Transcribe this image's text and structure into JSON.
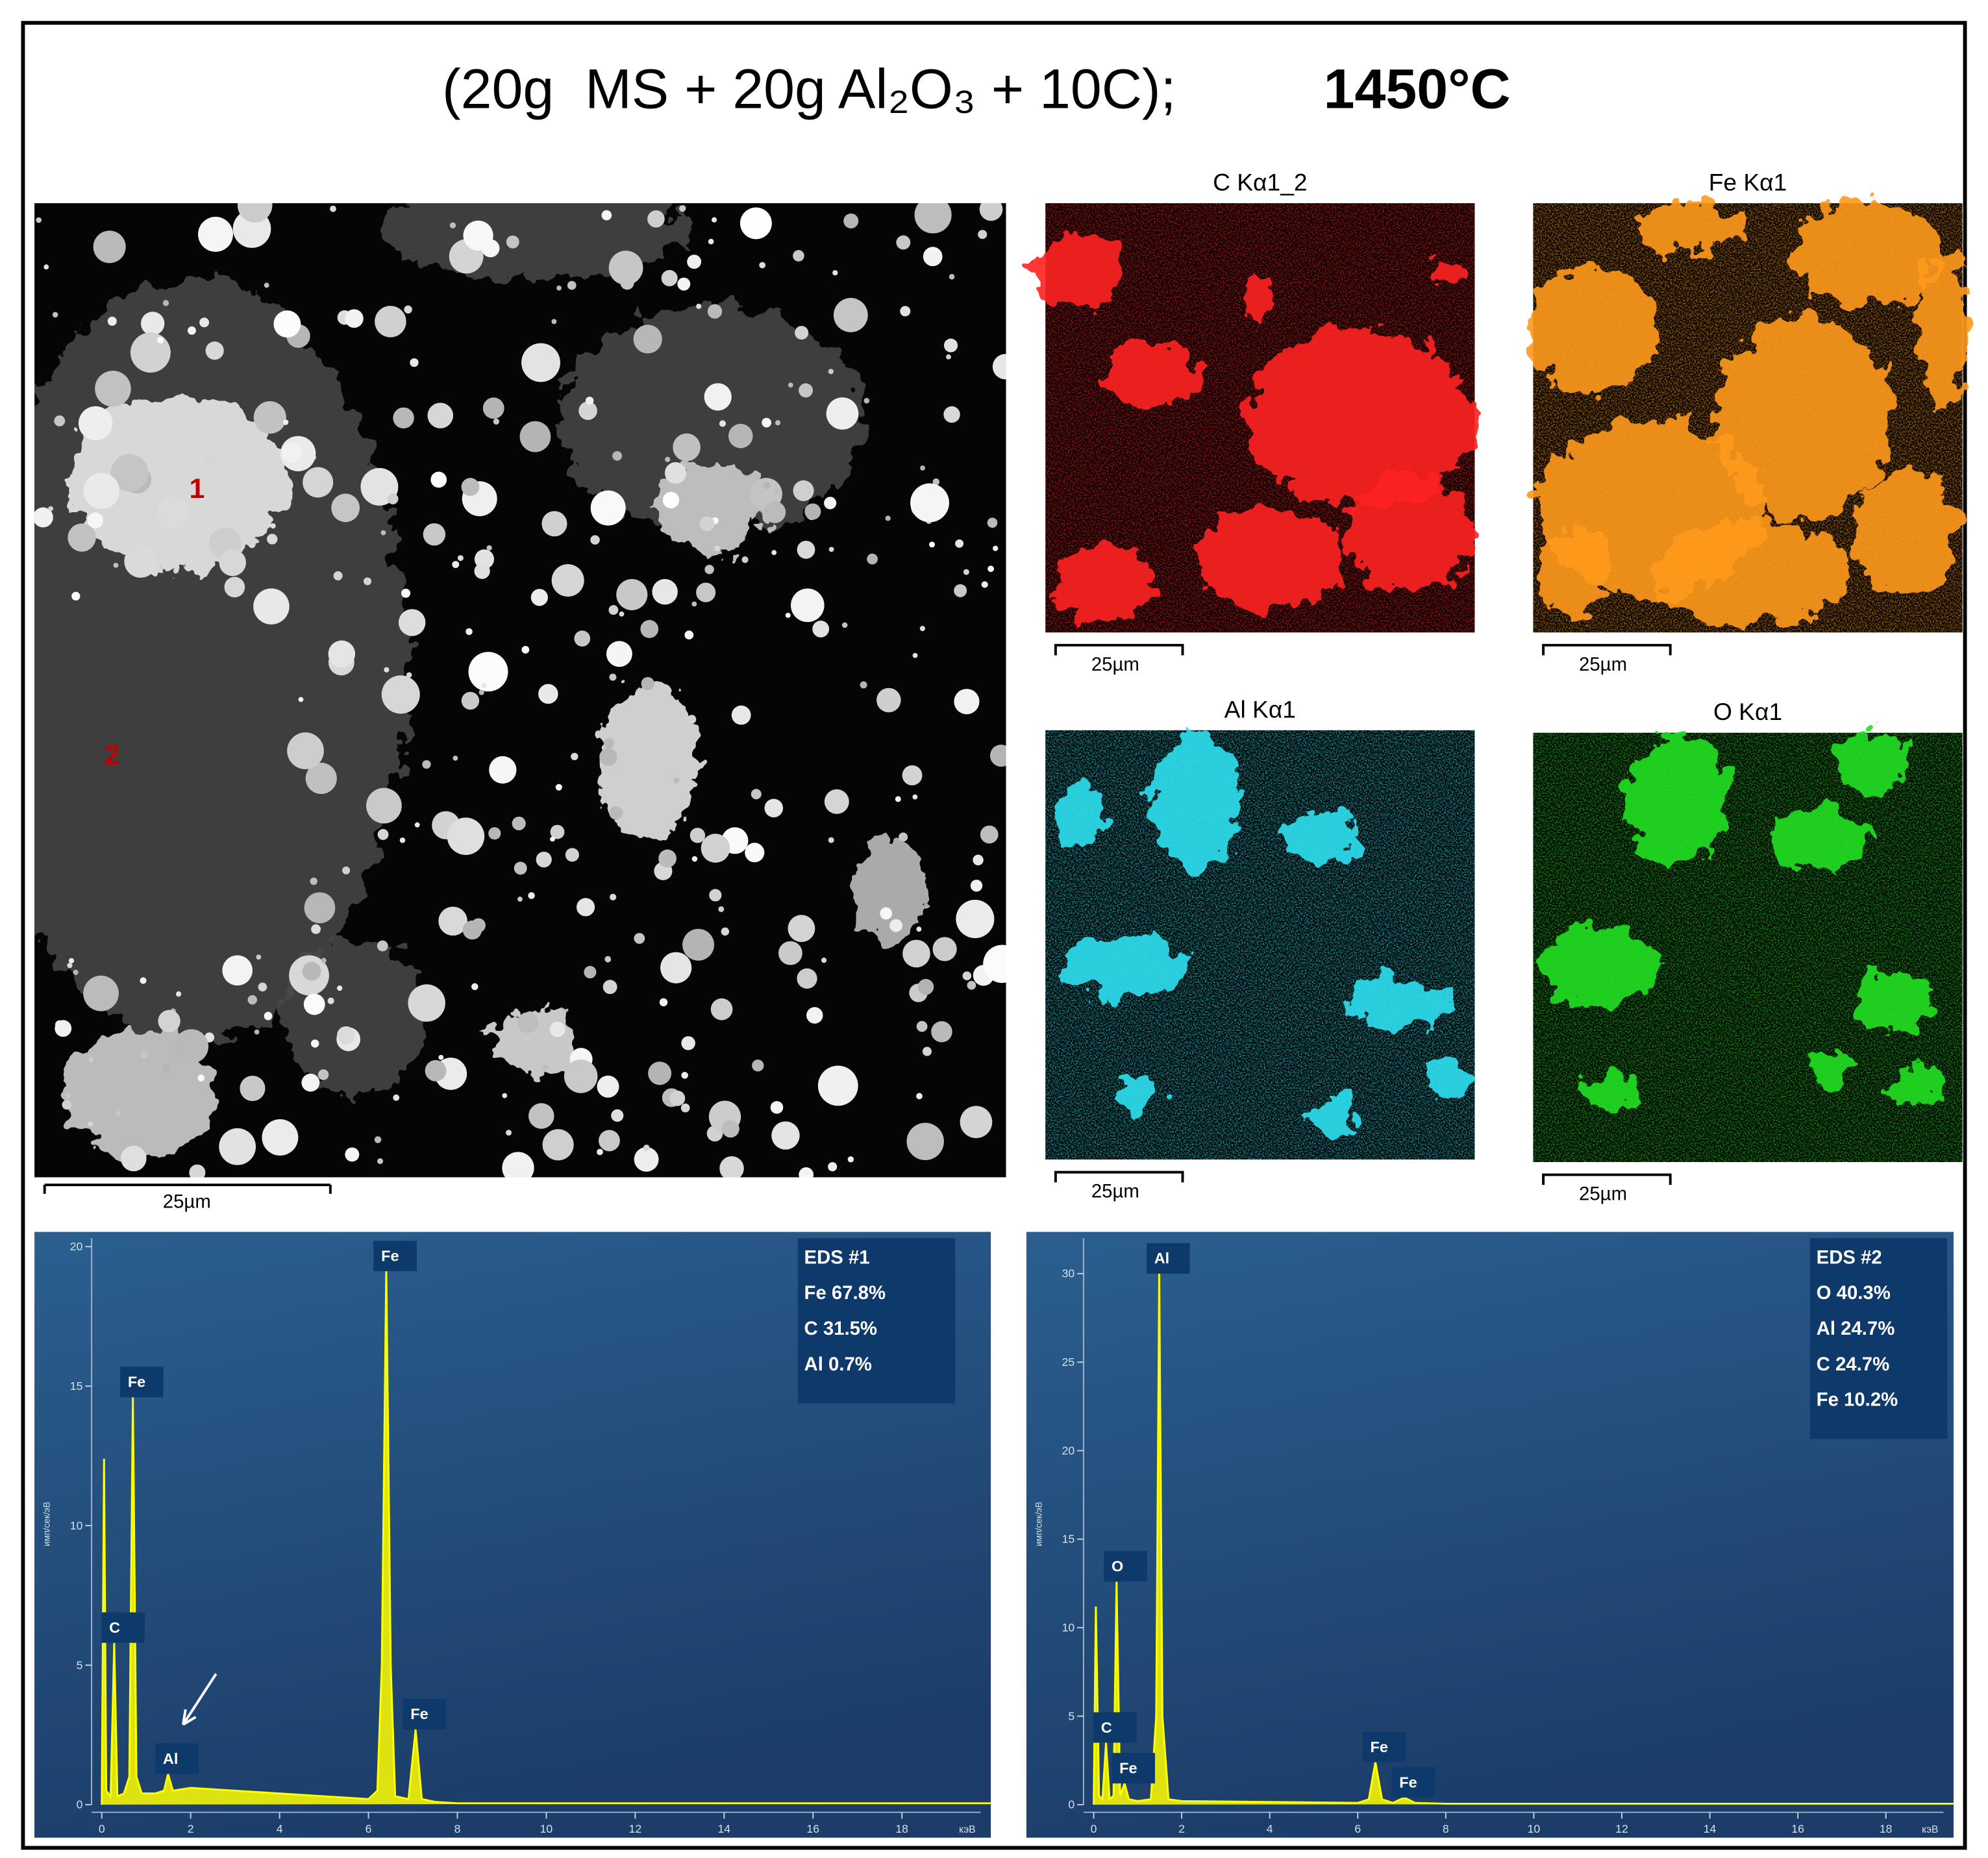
{
  "title": "(20g  MS + 20g Al₂O₃ + 10C);",
  "temperature": "1450°C",
  "sem_image": {
    "point_labels": [
      "1",
      "2"
    ],
    "scale_label": "25µm"
  },
  "element_maps": [
    {
      "title": "C Kα1_2",
      "color": "#ff2020",
      "scale_label": "25µm"
    },
    {
      "title": "Fe Kα1",
      "color": "#ff9a1a",
      "scale_label": "25µm"
    },
    {
      "title": "Al Kα1",
      "color": "#2de0f0",
      "scale_label": "25µm"
    },
    {
      "title": "O Kα1",
      "color": "#22e022",
      "scale_label": "25µm"
    }
  ],
  "chart_data": [
    {
      "type": "line",
      "color": "#ffff00",
      "x": [
        0,
        0.05,
        0.1,
        0.2,
        0.28,
        0.35,
        0.5,
        0.62,
        0.7,
        0.78,
        0.9,
        1.2,
        1.4,
        1.49,
        1.6,
        2,
        3,
        4,
        5,
        6,
        6.2,
        6.3,
        6.4,
        6.5,
        6.6,
        6.9,
        7.06,
        7.2,
        7.5,
        8,
        10,
        12,
        14,
        16,
        18,
        20
      ],
      "values": [
        0,
        12.4,
        0.5,
        0.3,
        5.8,
        0.3,
        0.4,
        1.0,
        14.6,
        1.0,
        0.4,
        0.4,
        0.5,
        1.1,
        0.5,
        0.6,
        0.5,
        0.4,
        0.3,
        0.2,
        0.5,
        5,
        19.2,
        5,
        0.3,
        0.2,
        2.7,
        0.2,
        0.1,
        0.05,
        0.05,
        0.05,
        0.05,
        0.05,
        0.05,
        0.05
      ],
      "xlim": [
        0,
        20
      ],
      "xticks": [
        0,
        2,
        4,
        6,
        8,
        10,
        12,
        14,
        16,
        18
      ],
      "ylim": [
        0,
        20.3
      ],
      "yticks": [
        0,
        5,
        10,
        15,
        20
      ],
      "x_label": "кэВ",
      "y_label": "имп/сек/эВ",
      "peak_labels": [
        {
          "label": "C",
          "x": 0.28
        },
        {
          "label": "Fe",
          "x": 0.7
        },
        {
          "label": "Al",
          "x": 1.49
        },
        {
          "label": "Fe",
          "x": 6.4
        },
        {
          "label": "Fe",
          "x": 7.06
        }
      ],
      "inset": [
        "EDS   #1",
        "Fe  67.8%",
        "C  31.5%",
        "Al  0.7%"
      ]
    },
    {
      "type": "line",
      "color": "#ffff00",
      "x": [
        0,
        0.05,
        0.12,
        0.2,
        0.28,
        0.36,
        0.45,
        0.52,
        0.6,
        0.7,
        0.8,
        1.0,
        1.3,
        1.42,
        1.49,
        1.56,
        1.7,
        2,
        4,
        6,
        6.25,
        6.4,
        6.55,
        6.8,
        7.06,
        7.3,
        8,
        10,
        12,
        14,
        16,
        18,
        20
      ],
      "values": [
        0,
        11.2,
        0.5,
        0.3,
        3.5,
        0.3,
        0.5,
        12.6,
        0.5,
        1.2,
        0.3,
        0.2,
        0.3,
        5,
        30,
        5,
        0.3,
        0.2,
        0.15,
        0.1,
        0.3,
        2.4,
        0.3,
        0.1,
        0.4,
        0.1,
        0.05,
        0.05,
        0.05,
        0.05,
        0.05,
        0.05,
        0.05
      ],
      "xlim": [
        0,
        20
      ],
      "xticks": [
        0,
        2,
        4,
        6,
        8,
        10,
        12,
        14,
        16,
        18
      ],
      "ylim": [
        0,
        32
      ],
      "yticks": [
        0,
        5,
        10,
        15,
        20,
        25,
        30
      ],
      "x_label": "кэВ",
      "y_label": "имп/сек/эВ",
      "peak_labels": [
        {
          "label": "C",
          "x": 0.28
        },
        {
          "label": "O",
          "x": 0.52
        },
        {
          "label": "Fe",
          "x": 0.7
        },
        {
          "label": "Al",
          "x": 1.49
        },
        {
          "label": "Fe",
          "x": 6.4
        },
        {
          "label": "Fe",
          "x": 7.06
        }
      ],
      "inset": [
        "EDS  #2",
        "O  40.3%",
        "Al  24.7%",
        "C  24.7%",
        "Fe  10.2%"
      ]
    }
  ]
}
